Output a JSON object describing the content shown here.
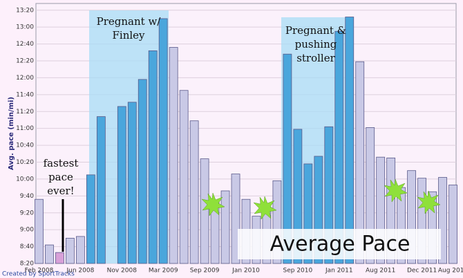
{
  "chart_data": {
    "type": "bar",
    "y_axis_label": "Avg. pace (min/mi)",
    "categories": [
      "Feb 2008",
      null,
      null,
      null,
      "Jun 2008",
      null,
      null,
      null,
      "Nov 2008",
      null,
      null,
      null,
      "Mar 2009",
      null,
      null,
      null,
      "Sep 2009",
      null,
      null,
      null,
      "Jan 2010",
      null,
      null,
      null,
      null,
      "Sep 2010",
      null,
      null,
      null,
      "Jan 2011",
      null,
      null,
      null,
      "Aug 2011",
      null,
      null,
      null,
      "Dec 2011",
      null,
      null,
      "Aug 2012"
    ],
    "values": [
      9.6,
      8.7,
      8.55,
      8.833,
      8.867,
      10.083,
      11.233,
      null,
      11.433,
      11.517,
      11.967,
      12.533,
      13.167,
      12.6,
      11.75,
      11.15,
      10.4,
      9.55,
      9.767,
      10.1,
      9.6,
      9.267,
      9.45,
      9.967,
      12.467,
      10.983,
      10.3,
      10.45,
      11.033,
      12.917,
      13.2,
      12.317,
      11.017,
      10.433,
      10.417,
      9.833,
      10.167,
      10.017,
      9.75,
      10.033,
      9.883
    ],
    "colors": [
      "#c9c9e6",
      "#c9c9e6",
      "#d8a0d8",
      "#c9c9e6",
      "#c9c9e6",
      "#4aa6dc",
      "#4aa6dc",
      null,
      "#4aa6dc",
      "#4aa6dc",
      "#4aa6dc",
      "#4aa6dc",
      "#4aa6dc",
      "#c9c9e6",
      "#c9c9e6",
      "#c9c9e6",
      "#c9c9e6",
      "#c9c9e6",
      "#c9c9e6",
      "#c9c9e6",
      "#c9c9e6",
      "#c9c9e6",
      "#c9c9e6",
      "#c9c9e6",
      "#4aa6dc",
      "#4aa6dc",
      "#4aa6dc",
      "#4aa6dc",
      "#4aa6dc",
      "#4aa6dc",
      "#4aa6dc",
      "#c9c9e6",
      "#c9c9e6",
      "#c9c9e6",
      "#c9c9e6",
      "#c9c9e6",
      "#c9c9e6",
      "#c9c9e6",
      "#c9c9e6",
      "#c9c9e6",
      "#c9c9e6"
    ],
    "ylim": [
      8.3333,
      13.4667
    ],
    "yticks": [
      {
        "value": 8.3333,
        "label": "8:20"
      },
      {
        "value": 8.6667,
        "label": "8:40"
      },
      {
        "value": 9,
        "label": "9:00"
      },
      {
        "value": 9.3333,
        "label": "9:20"
      },
      {
        "value": 9.6667,
        "label": "9:40"
      },
      {
        "value": 10,
        "label": "10:00"
      },
      {
        "value": 10.3333,
        "label": "10:20"
      },
      {
        "value": 10.6667,
        "label": "10:40"
      },
      {
        "value": 11,
        "label": "11:00"
      },
      {
        "value": 11.3333,
        "label": "11:20"
      },
      {
        "value": 11.6667,
        "label": "11:40"
      },
      {
        "value": 12,
        "label": "12:00"
      },
      {
        "value": 12.3333,
        "label": "12:20"
      },
      {
        "value": 12.6667,
        "label": "12:40"
      },
      {
        "value": 13,
        "label": "13:00"
      },
      {
        "value": 13.3333,
        "label": "13:20"
      }
    ],
    "grid": true,
    "annotations": {
      "first_pregnancy": [
        "Pregnant w/",
        "Finley"
      ],
      "second_pregnancy": [
        "Pregnant &",
        "pushing",
        "stroller"
      ],
      "fastest": [
        "fastest",
        "pace",
        "ever!"
      ],
      "overlay_title": "Average Pace",
      "credit": "Created by SportTracks"
    }
  }
}
